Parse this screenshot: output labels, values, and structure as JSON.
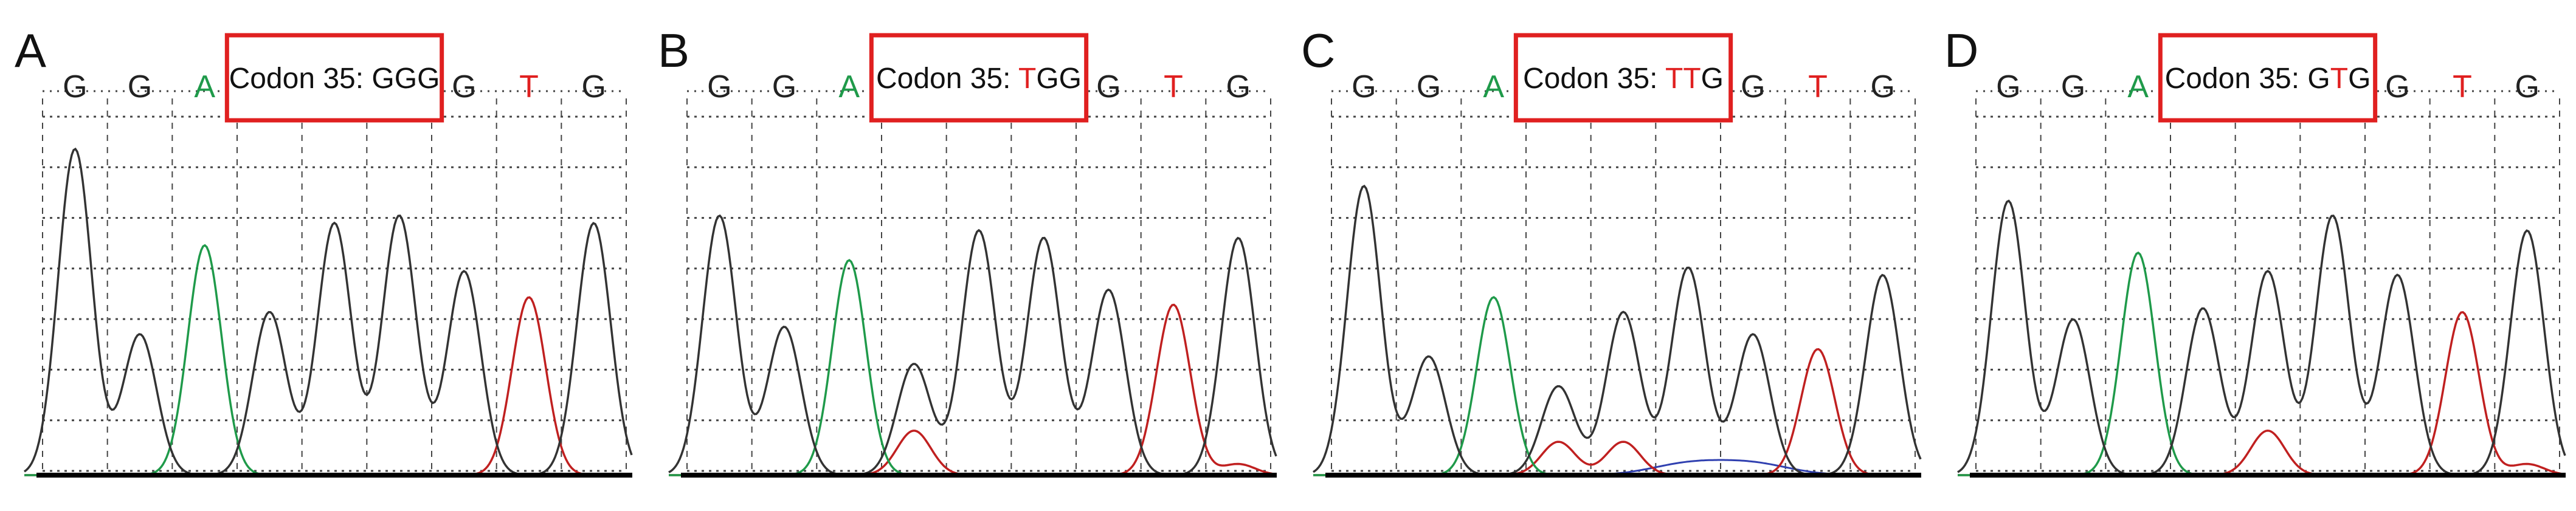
{
  "figure": {
    "panels": [
      {
        "letter": "A",
        "codon_label": "Codon 35: ",
        "codon_bases": [
          {
            "b": "G",
            "mut": false
          },
          {
            "b": "G",
            "mut": false
          },
          {
            "b": "G",
            "mut": false
          }
        ],
        "bases": [
          "G",
          "G",
          "A",
          "",
          "",
          "",
          "G",
          "T",
          "G"
        ],
        "base_colors": [
          "#222222",
          "#222222",
          "#1f9a4a",
          "",
          "",
          "",
          "#222222",
          "#e02020",
          "#222222"
        ],
        "black_peaks": [
          0.88,
          0.38,
          0.0,
          0.44,
          0.68,
          0.7,
          0.55,
          0.0,
          0.68
        ],
        "green_peaks": [
          0,
          0,
          0.62,
          0,
          0,
          0,
          0,
          0,
          0
        ],
        "red_peaks": [
          0,
          0,
          0,
          0,
          0,
          0,
          0,
          0.48,
          0
        ],
        "blue_peaks": [
          0,
          0,
          0,
          0,
          0,
          0,
          0,
          0,
          0
        ]
      },
      {
        "letter": "B",
        "codon_label": "Codon 35: ",
        "codon_bases": [
          {
            "b": "T",
            "mut": true
          },
          {
            "b": "G",
            "mut": false
          },
          {
            "b": "G",
            "mut": false
          }
        ],
        "bases": [
          "G",
          "G",
          "A",
          "",
          "",
          "",
          "G",
          "T",
          "G"
        ],
        "base_colors": [
          "#222222",
          "#222222",
          "#1f9a4a",
          "",
          "",
          "",
          "#222222",
          "#e02020",
          "#222222"
        ],
        "black_peaks": [
          0.7,
          0.4,
          0.0,
          0.3,
          0.66,
          0.64,
          0.5,
          0.0,
          0.64
        ],
        "green_peaks": [
          0,
          0,
          0.58,
          0,
          0,
          0,
          0,
          0,
          0
        ],
        "red_peaks": [
          0,
          0,
          0,
          0.12,
          0,
          0,
          0,
          0.46,
          0.03
        ],
        "blue_peaks": [
          0,
          0,
          0,
          0,
          0,
          0,
          0,
          0,
          0
        ]
      },
      {
        "letter": "C",
        "codon_label": "Codon 35: ",
        "codon_bases": [
          {
            "b": "T",
            "mut": true
          },
          {
            "b": "T",
            "mut": true
          },
          {
            "b": "G",
            "mut": false
          }
        ],
        "bases": [
          "G",
          "G",
          "A",
          "",
          "",
          "",
          "G",
          "T",
          "G"
        ],
        "base_colors": [
          "#222222",
          "#222222",
          "#1f9a4a",
          "",
          "",
          "",
          "#222222",
          "#e02020",
          "#222222"
        ],
        "black_peaks": [
          0.78,
          0.32,
          0.0,
          0.24,
          0.44,
          0.56,
          0.38,
          0.0,
          0.54
        ],
        "green_peaks": [
          0,
          0,
          0.48,
          0,
          0,
          0,
          0,
          0,
          0
        ],
        "red_peaks": [
          0,
          0,
          0,
          0.09,
          0.09,
          0,
          0,
          0.34,
          0
        ],
        "blue_peaks": [
          0,
          0,
          0,
          0,
          0,
          0.03,
          0.03,
          0,
          0
        ]
      },
      {
        "letter": "D",
        "codon_label": "Codon 35: ",
        "codon_bases": [
          {
            "b": "G",
            "mut": false
          },
          {
            "b": "T",
            "mut": true
          },
          {
            "b": "G",
            "mut": false
          }
        ],
        "bases": [
          "G",
          "G",
          "A",
          "",
          "",
          "",
          "G",
          "T",
          "G"
        ],
        "base_colors": [
          "#222222",
          "#222222",
          "#1f9a4a",
          "",
          "",
          "",
          "#222222",
          "#e02020",
          "#222222"
        ],
        "black_peaks": [
          0.74,
          0.42,
          0.0,
          0.45,
          0.55,
          0.7,
          0.54,
          0.0,
          0.66
        ],
        "green_peaks": [
          0,
          0,
          0.6,
          0,
          0,
          0,
          0,
          0,
          0
        ],
        "red_peaks": [
          0,
          0,
          0,
          0,
          0.12,
          0,
          0,
          0.44,
          0.03
        ],
        "blue_peaks": [
          0,
          0,
          0,
          0,
          0,
          0,
          0,
          0,
          0
        ]
      }
    ],
    "colors": {
      "black_trace": "#333333",
      "green_trace": "#1f9a4a",
      "red_trace": "#c02020",
      "blue_trace": "#3040b0",
      "codon_box": "#e02020",
      "mutated_base": "#e02020",
      "grid": "#444444"
    }
  }
}
